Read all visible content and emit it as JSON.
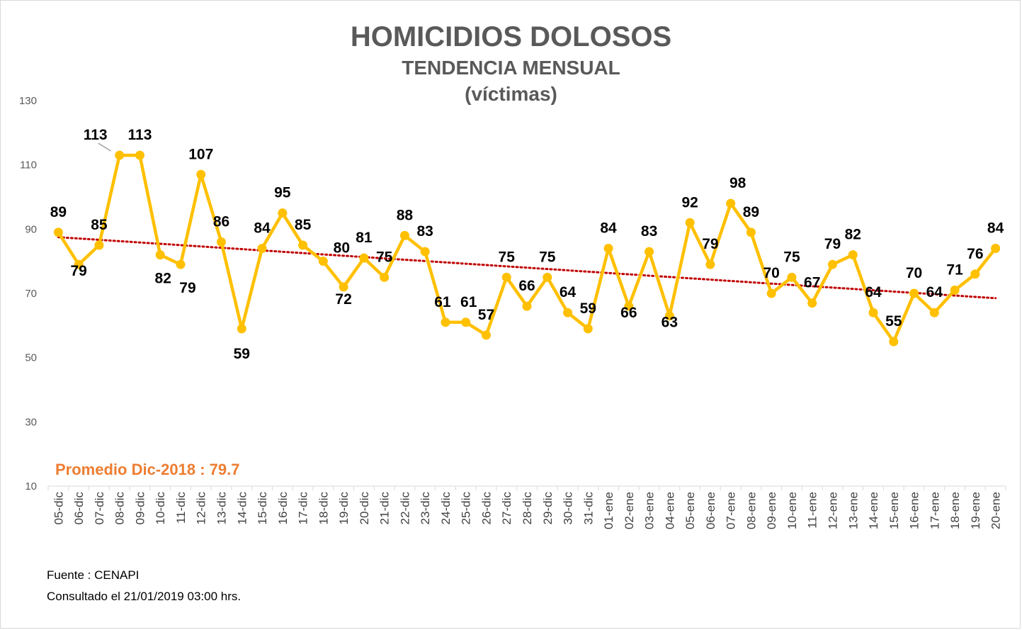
{
  "chart_data": {
    "type": "line",
    "title": "HOMICIDIOS DOLOSOS",
    "subtitle": "TENDENCIA MENSUAL",
    "subtitle2": "(víctimas)",
    "categories": [
      "05-dic",
      "06-dic",
      "07-dic",
      "08-dic",
      "09-dic",
      "10-dic",
      "11-dic",
      "12-dic",
      "13-dic",
      "14-dic",
      "15-dic",
      "16-dic",
      "17-dic",
      "18-dic",
      "19-dic",
      "20-dic",
      "21-dic",
      "22-dic",
      "23-dic",
      "24-dic",
      "25-dic",
      "26-dic",
      "27-dic",
      "28-dic",
      "29-dic",
      "30-dic",
      "31-dic",
      "01-ene",
      "02-ene",
      "03-ene",
      "04-ene",
      "05-ene",
      "06-ene",
      "07-ene",
      "08-ene",
      "09-ene",
      "10-ene",
      "11-ene",
      "12-ene",
      "13-ene",
      "14-ene",
      "15-ene",
      "16-ene",
      "17-ene",
      "18-ene",
      "19-ene",
      "20-ene"
    ],
    "series": [
      {
        "values": [
          89,
          79,
          85,
          113,
          113,
          82,
          79,
          107,
          86,
          59,
          84,
          95,
          85,
          80,
          72,
          81,
          75,
          88,
          83,
          61,
          61,
          57,
          75,
          66,
          75,
          64,
          59,
          84,
          66,
          83,
          63,
          92,
          79,
          98,
          89,
          70,
          75,
          67,
          79,
          82,
          64,
          55,
          70,
          64,
          71,
          76,
          84
        ]
      }
    ],
    "trendline": {
      "type": "linear",
      "start": 87.5,
      "end": 68.5
    },
    "ylim": [
      10,
      130
    ],
    "yticks": [
      10,
      30,
      50,
      70,
      90,
      110,
      130
    ],
    "legend": "none",
    "grid": false,
    "line_color": "#FFC000",
    "trend_color": "#C00000",
    "annotation": {
      "text": "Promedio Dic-2018 : 79.7",
      "color": "#ED7D31"
    }
  },
  "footer": {
    "source": "Fuente : CENAPI",
    "consulted": "Consultado el 21/01/2019 03:00 hrs."
  }
}
